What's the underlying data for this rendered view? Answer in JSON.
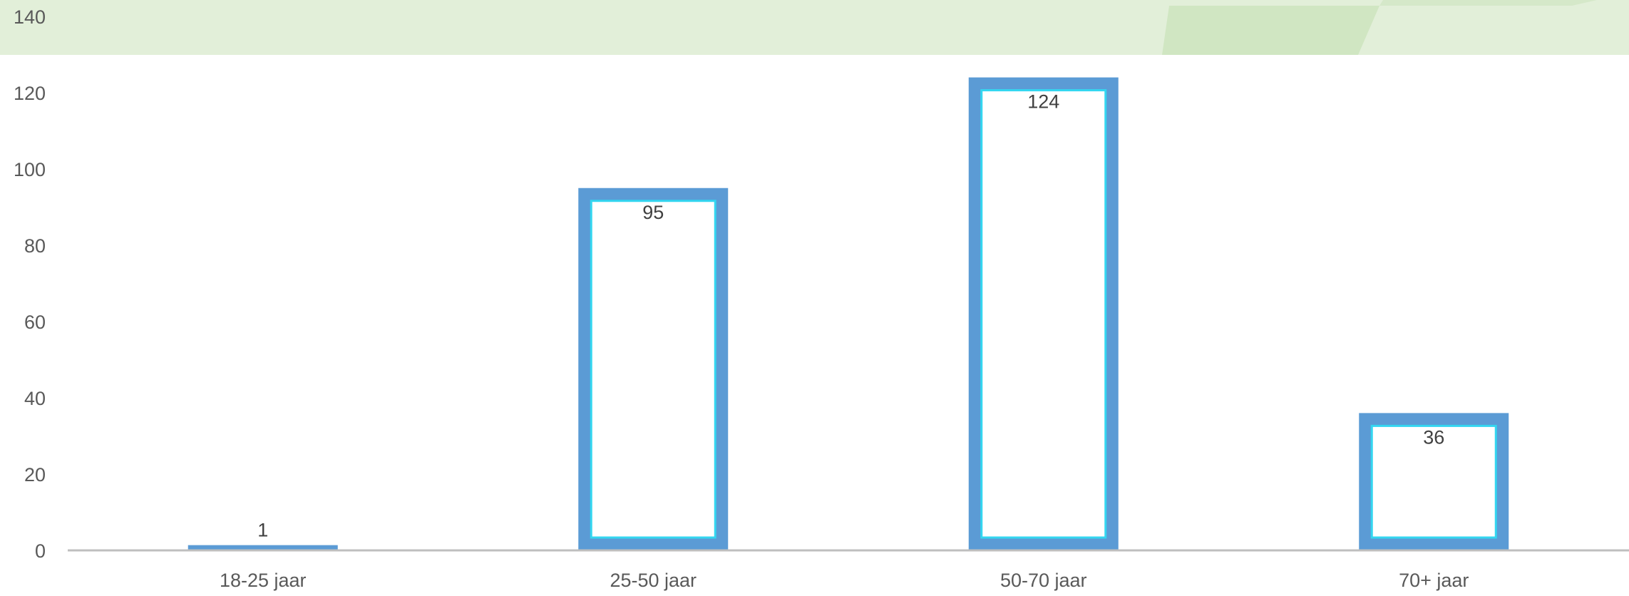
{
  "colors": {
    "banner": "#e2efd9",
    "banner_accent": "#d0e6c2",
    "bar_fill": "#5b9bd5",
    "bar_inner_fill": "#ffffff",
    "bar_inner_stroke": "#33d6f0",
    "axis_line": "#bfbfbf",
    "text": "#595959",
    "data_label": "#404040"
  },
  "chart_data": {
    "type": "bar",
    "title": "",
    "xlabel": "",
    "ylabel": "",
    "categories": [
      "18-25 jaar",
      "25-50 jaar",
      "50-70 jaar",
      "70+ jaar"
    ],
    "series": [
      {
        "values": [
          1,
          95,
          124,
          36
        ]
      }
    ],
    "data_labels": [
      "1",
      "95",
      "124",
      "36"
    ],
    "ylim": [
      0,
      140
    ],
    "yticks": [
      0,
      20,
      40,
      60,
      80,
      100,
      120,
      140
    ],
    "ytick_labels": [
      "0",
      "20",
      "40",
      "60",
      "80",
      "100",
      "120",
      "140"
    ],
    "grid": false,
    "legend": "none"
  }
}
